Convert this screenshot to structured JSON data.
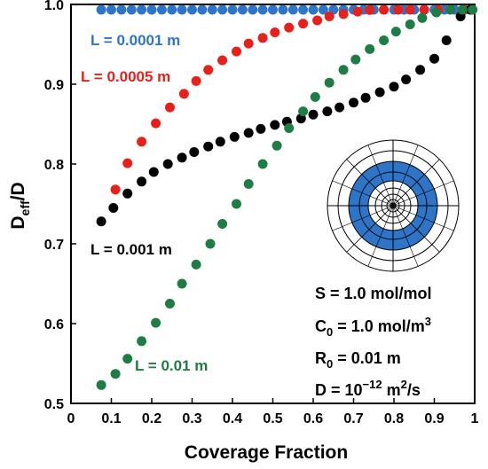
{
  "chart_data": {
    "type": "scatter",
    "xlabel": "Coverage Fraction",
    "ylabel_main": "D",
    "ylabel_sub": "eff",
    "ylabel_tail": "/D",
    "xlim": [
      0,
      1
    ],
    "ylim": [
      0.5,
      1.0
    ],
    "x_ticks": [
      "0",
      "0.1",
      "0.2",
      "0.3",
      "0.4",
      "0.5",
      "0.6",
      "0.7",
      "0.8",
      "0.9",
      "1"
    ],
    "y_ticks": [
      "0.5",
      "0.6",
      "0.7",
      "0.8",
      "0.9",
      "1.0"
    ],
    "grid": false,
    "series": [
      {
        "name": "L = 0.0001 m",
        "color": "#2e75c8",
        "x": [
          0.075,
          0.1,
          0.125,
          0.15,
          0.175,
          0.2,
          0.225,
          0.25,
          0.275,
          0.3,
          0.325,
          0.35,
          0.375,
          0.4,
          0.425,
          0.45,
          0.475,
          0.5,
          0.525,
          0.55,
          0.575,
          0.6,
          0.625,
          0.65,
          0.675,
          0.7,
          0.725,
          0.75,
          0.775,
          0.8,
          0.825,
          0.85,
          0.875,
          0.9,
          0.925,
          0.95,
          0.975,
          0.99
        ],
        "y": [
          0.995,
          0.995,
          0.995,
          0.995,
          0.995,
          0.995,
          0.995,
          0.995,
          0.995,
          0.995,
          0.995,
          0.995,
          0.995,
          0.995,
          0.995,
          0.995,
          0.995,
          0.995,
          0.995,
          0.995,
          0.995,
          0.995,
          0.995,
          0.995,
          0.995,
          0.995,
          0.995,
          0.995,
          0.996,
          0.997,
          0.997,
          0.998,
          0.998,
          0.999,
          0.999,
          1.0,
          1.0,
          1.0
        ]
      },
      {
        "name": "L = 0.0005 m",
        "color": "#e8201c",
        "x": [
          0.11,
          0.14,
          0.175,
          0.21,
          0.245,
          0.28,
          0.31,
          0.34,
          0.375,
          0.41,
          0.44,
          0.475,
          0.505,
          0.54,
          0.575,
          0.61,
          0.64,
          0.675,
          0.71,
          0.74,
          0.775,
          0.81,
          0.84,
          0.875,
          0.91,
          0.94,
          0.975
        ],
        "y": [
          0.768,
          0.801,
          0.828,
          0.851,
          0.871,
          0.888,
          0.904,
          0.918,
          0.93,
          0.941,
          0.951,
          0.958,
          0.965,
          0.971,
          0.976,
          0.98,
          0.985,
          0.988,
          0.991,
          0.993,
          0.995,
          0.997,
          0.998,
          0.999,
          1.0,
          1.0,
          1.0
        ]
      },
      {
        "name": "L = 0.001 m",
        "color": "#000000",
        "x": [
          0.075,
          0.105,
          0.14,
          0.175,
          0.205,
          0.24,
          0.275,
          0.305,
          0.34,
          0.37,
          0.405,
          0.44,
          0.47,
          0.505,
          0.535,
          0.57,
          0.6,
          0.635,
          0.665,
          0.7,
          0.73,
          0.765,
          0.8,
          0.83,
          0.865,
          0.9,
          0.93,
          0.965,
          0.99
        ],
        "y": [
          0.728,
          0.745,
          0.763,
          0.778,
          0.79,
          0.8,
          0.808,
          0.815,
          0.822,
          0.828,
          0.834,
          0.839,
          0.844,
          0.849,
          0.853,
          0.857,
          0.862,
          0.866,
          0.871,
          0.877,
          0.883,
          0.89,
          0.897,
          0.906,
          0.918,
          0.932,
          0.955,
          0.985,
          1.002
        ]
      },
      {
        "name": "L = 0.01 m",
        "color": "#1e7d45",
        "x": [
          0.075,
          0.11,
          0.14,
          0.175,
          0.21,
          0.245,
          0.275,
          0.31,
          0.345,
          0.375,
          0.41,
          0.44,
          0.475,
          0.51,
          0.54,
          0.575,
          0.605,
          0.64,
          0.675,
          0.705,
          0.74,
          0.775,
          0.805,
          0.84,
          0.87,
          0.905,
          0.94,
          0.97,
          0.995
        ],
        "y": [
          0.523,
          0.537,
          0.556,
          0.578,
          0.601,
          0.625,
          0.65,
          0.674,
          0.7,
          0.725,
          0.75,
          0.775,
          0.8,
          0.823,
          0.845,
          0.866,
          0.884,
          0.902,
          0.918,
          0.931,
          0.944,
          0.955,
          0.966,
          0.975,
          0.983,
          0.99,
          0.995,
          0.999,
          1.002
        ]
      }
    ],
    "annotations": {
      "param_lines": [
        {
          "main": "S = 1.0 mol/mol"
        },
        {
          "main": "C",
          "sub": "0",
          "tail": " = 1.0 mol/m",
          "sup": "3"
        },
        {
          "main": "R",
          "sub": "0",
          "tail": " = 0.01 m"
        },
        {
          "main": "D = 10",
          "sup": "−12",
          "tail": " m",
          "sup2": "2",
          "tail2": "/s"
        }
      ]
    }
  },
  "inset": {
    "icon": "coverage-pattern-icon",
    "band_color": "#2e75c8"
  }
}
